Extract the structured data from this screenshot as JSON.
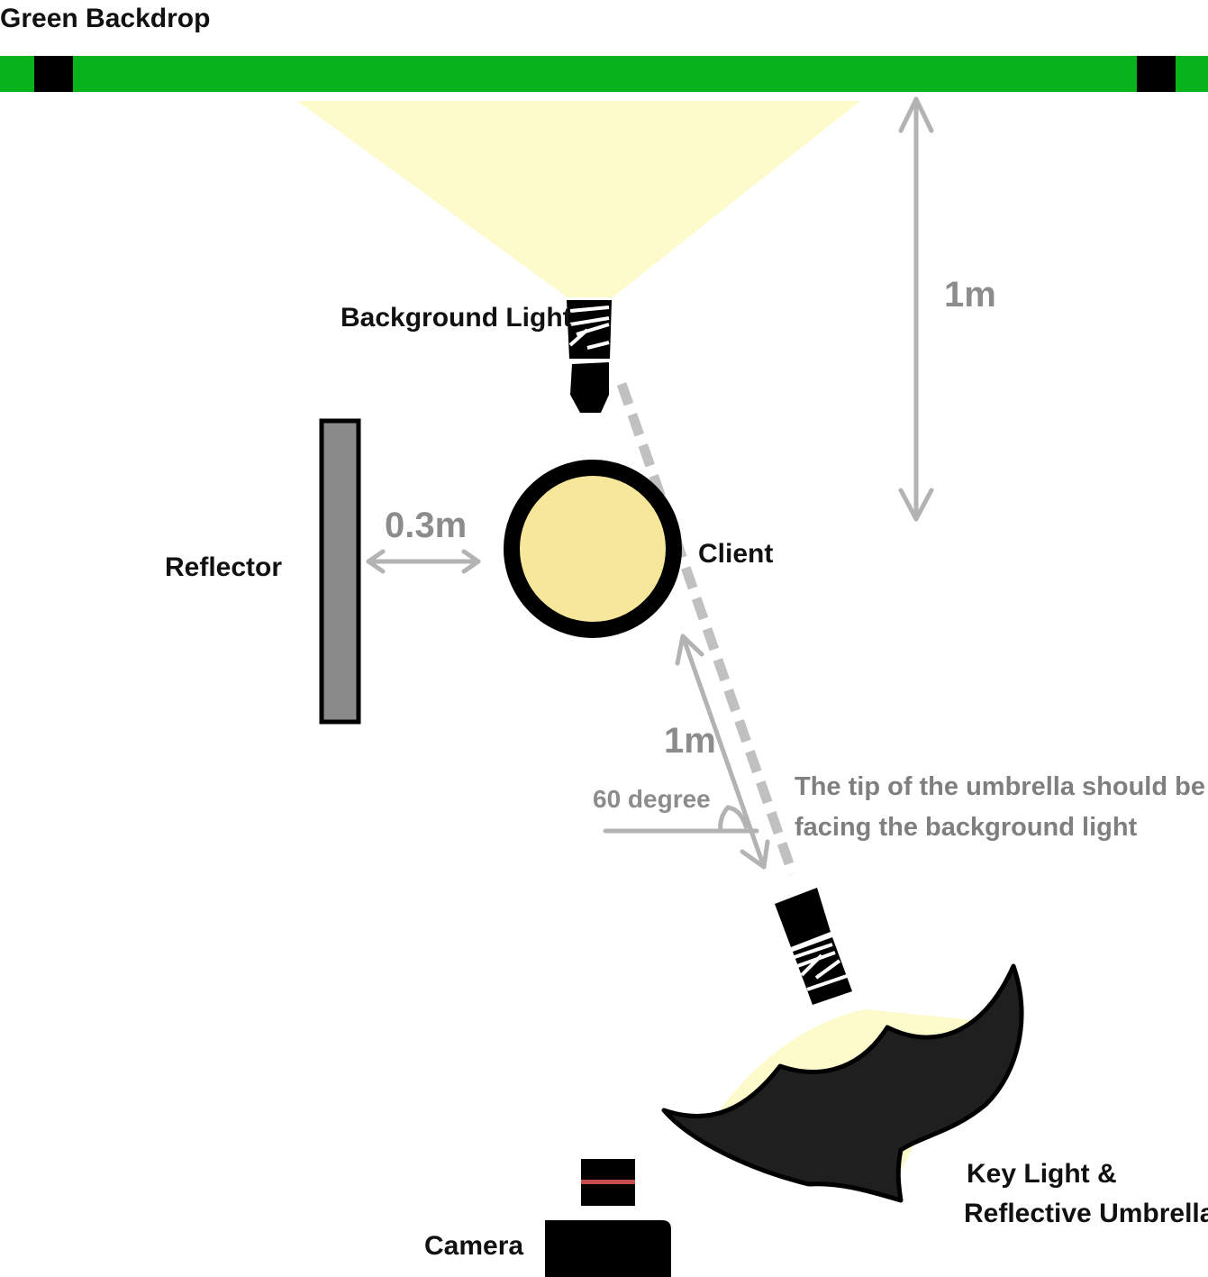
{
  "labels": {
    "backdrop": "Green Backdrop",
    "background_light": "Background Light",
    "reflector": "Reflector",
    "client": "Client",
    "camera": "Camera",
    "key_light_line1": "Key Light &",
    "key_light_line2": "Reflective Umbrella"
  },
  "measurements": {
    "backdrop_to_client": "1m",
    "reflector_to_client": "0.3m",
    "key_light_to_client": "1m",
    "angle": "60 degree"
  },
  "note": {
    "line1": "The tip of the umbrella should be",
    "line2": "facing the background light"
  },
  "colors": {
    "backdrop": "#06b31a",
    "light_beam": "#fdfbcc",
    "client_fill": "#f7e79b",
    "reflector": "#8a8a8a",
    "measure": "#b3b3b3",
    "umbrella": "#1f1f1f",
    "camera_stripe": "#c64b4b"
  }
}
